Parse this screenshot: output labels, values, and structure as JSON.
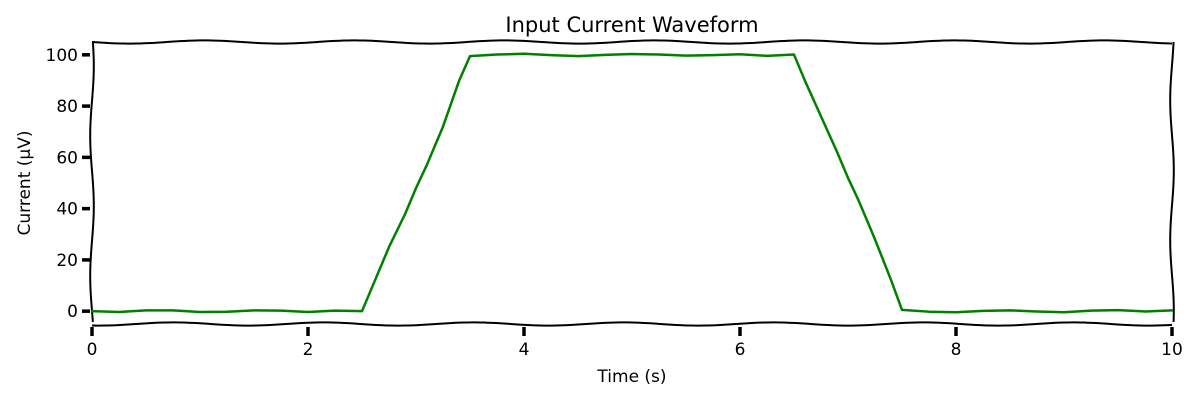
{
  "chart_data": {
    "type": "line",
    "title": "Input Current Waveform",
    "xlabel": "Time (s)",
    "ylabel": "Current (μV)",
    "xlim": [
      0,
      10
    ],
    "ylim": [
      -5,
      105
    ],
    "xticks": [
      0,
      2,
      4,
      6,
      8,
      10
    ],
    "yticks": [
      0,
      20,
      40,
      60,
      80,
      100
    ],
    "xtick_labels": [
      "0",
      "2",
      "4",
      "6",
      "8",
      "10"
    ],
    "ytick_labels": [
      "0",
      "20",
      "40",
      "60",
      "80",
      "100"
    ],
    "grid": false,
    "style": "hand-drawn",
    "series": [
      {
        "color": "#008000",
        "x": [
          0,
          0.25,
          0.5,
          0.75,
          1.0,
          1.25,
          1.5,
          1.75,
          2.0,
          2.25,
          2.5,
          2.6,
          2.75,
          2.9,
          3.0,
          3.1,
          3.25,
          3.4,
          3.5,
          3.75,
          4.0,
          4.25,
          4.5,
          4.75,
          5.0,
          5.25,
          5.5,
          5.75,
          6.0,
          6.25,
          6.5,
          6.6,
          6.75,
          6.9,
          7.0,
          7.1,
          7.25,
          7.4,
          7.5,
          7.75,
          8.0,
          8.25,
          8.5,
          8.75,
          9.0,
          9.25,
          9.5,
          9.75,
          10.0
        ],
        "y": [
          0,
          -0.3,
          0.3,
          0.3,
          -0.3,
          -0.2,
          0.3,
          0.2,
          -0.3,
          0.2,
          0,
          10,
          25,
          38,
          48,
          57,
          72,
          90,
          99.5,
          100.1,
          100.4,
          99.9,
          99.5,
          100.0,
          100.3,
          100.1,
          99.7,
          99.9,
          100.2,
          99.6,
          100.1,
          90,
          76,
          62,
          52,
          43,
          28,
          12,
          0.5,
          -0.2,
          -0.4,
          0.1,
          0.3,
          -0.1,
          -0.4,
          0.2,
          0.4,
          -0.1,
          0.3
        ]
      }
    ]
  }
}
